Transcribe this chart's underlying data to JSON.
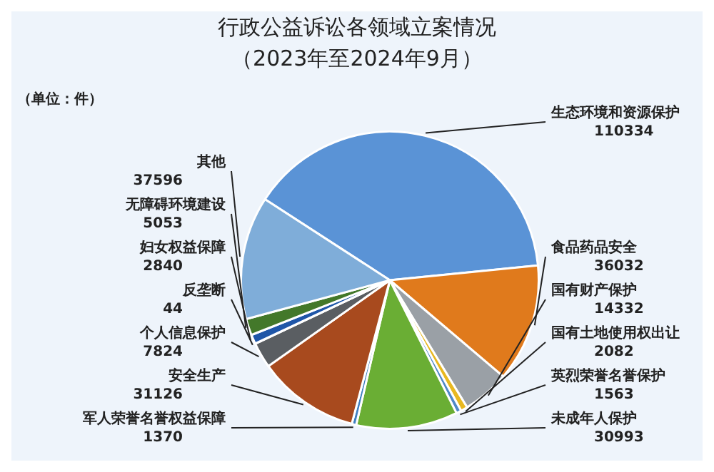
{
  "chart_data": {
    "type": "pie",
    "title": "行政公益诉讼各领域立案情况",
    "subtitle": "（2023年至2024年9月）",
    "annotations": [
      "（单位：件）"
    ],
    "categories": [
      "生态环境和资源保护",
      "食品药品安全",
      "国有财产保护",
      "国有土地使用权出让",
      "英烈荣誉名誉保护",
      "未成年人保护",
      "军人荣誉名誉权益保障",
      "安全生产",
      "个人信息保护",
      "反垄断",
      "妇女权益保障",
      "无障碍环境建设",
      "其他"
    ],
    "values": [
      110334,
      36032,
      14332,
      2082,
      1563,
      30993,
      1370,
      31126,
      7824,
      44,
      2840,
      5053,
      37596
    ],
    "colors": [
      "#5a93d6",
      "#e07a1c",
      "#9aa0a6",
      "#e8b820",
      "#4f88c8",
      "#6aae34",
      "#3f7fc0",
      "#a84a1e",
      "#5a5e62",
      "#8fa0b0",
      "#1f56a8",
      "#43782a",
      "#7fadd9"
    ],
    "data_labels": true,
    "legend": false
  }
}
